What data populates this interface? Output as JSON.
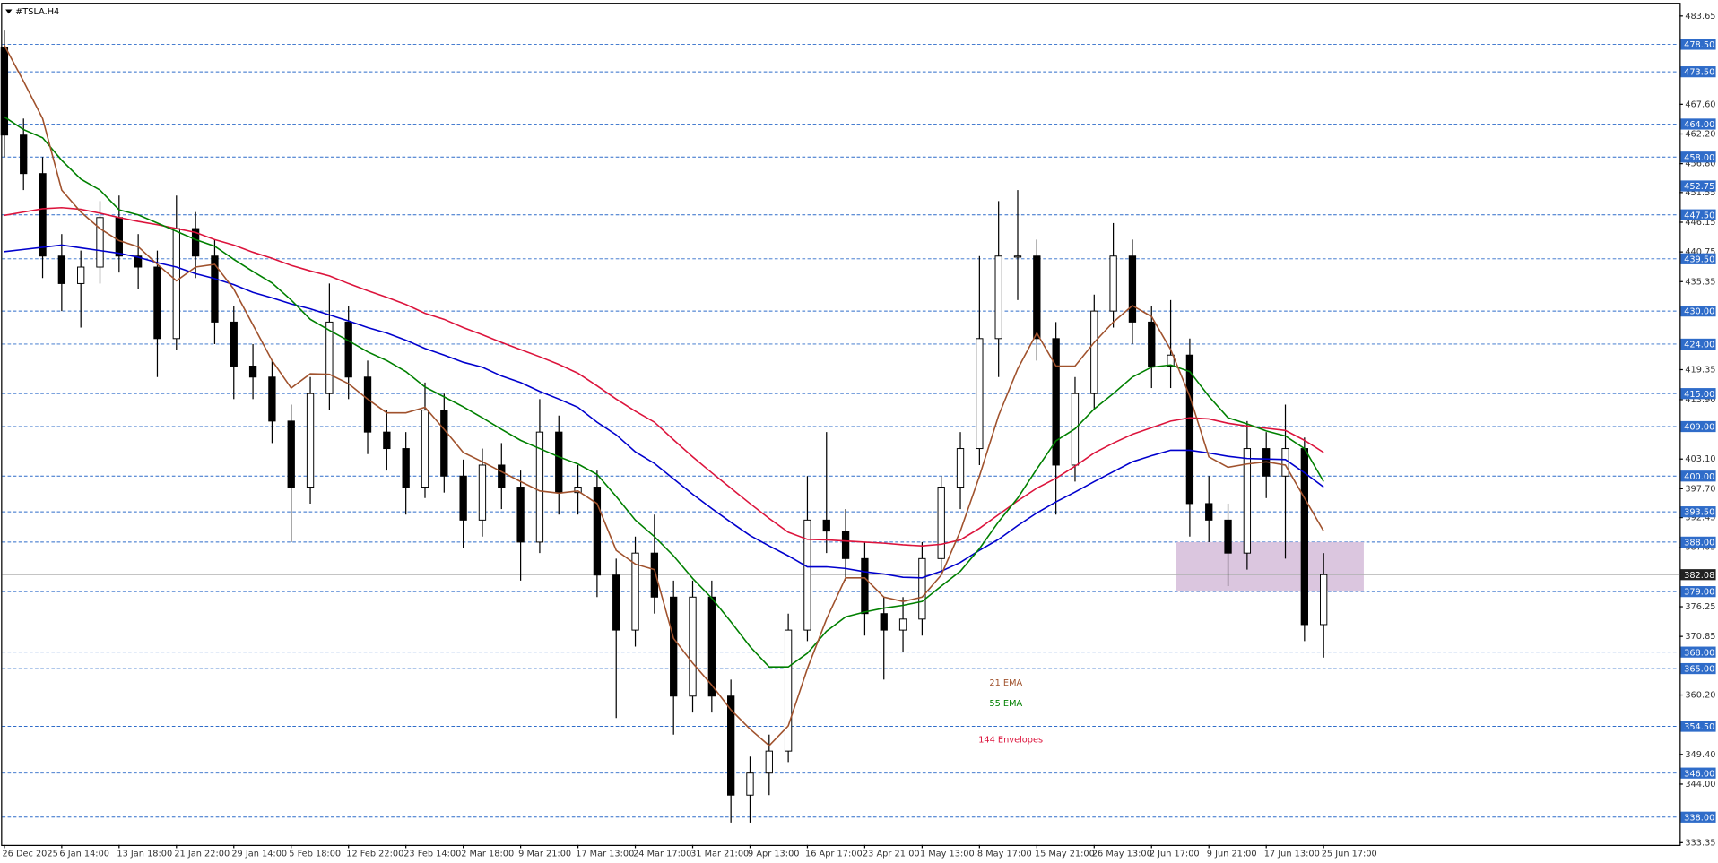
{
  "chart_data": {
    "type": "candlestick",
    "title": "#TSLA.H4",
    "categories": [
      "26 Dec 2025",
      null,
      null,
      "6 Jan 14:00",
      null,
      null,
      "13 Jan 18:00",
      null,
      null,
      "21 Jan 22:00",
      null,
      null,
      "29 Jan 14:00",
      null,
      null,
      "5 Feb 18:00",
      null,
      null,
      "12 Feb 22:00",
      null,
      null,
      "23 Feb 14:00",
      null,
      null,
      "2 Mar 18:00",
      null,
      null,
      "9 Mar 21:00",
      null,
      null,
      "17 Mar 13:00",
      null,
      null,
      "24 Mar 17:00",
      null,
      null,
      "31 Mar 21:00",
      null,
      null,
      "9 Apr 13:00",
      null,
      null,
      "16 Apr 17:00",
      null,
      null,
      "23 Apr 21:00",
      null,
      null,
      "1 May 13:00",
      null,
      null,
      "8 May 17:00",
      null,
      null,
      "15 May 21:00",
      null,
      null,
      "26 May 13:00",
      null,
      null,
      "2 Jun 17:00",
      null,
      null,
      "9 Jun 21:00",
      null,
      null,
      "17 Jun 13:00",
      null,
      null,
      "25 Jun 17:00"
    ],
    "open": [
      478,
      462,
      455,
      440,
      435,
      438,
      447,
      440,
      438,
      425,
      445,
      440,
      428,
      420,
      418,
      410,
      398,
      415,
      428,
      418,
      408,
      405,
      398,
      412,
      400,
      392,
      402,
      398,
      388,
      408,
      397,
      398,
      382,
      372,
      386,
      378,
      360,
      378,
      360,
      342,
      346,
      350,
      372,
      392,
      390,
      385,
      375,
      372,
      374,
      385,
      398,
      405,
      425,
      440,
      440,
      425,
      402,
      415,
      430,
      440,
      428,
      420,
      422,
      395,
      392,
      386,
      405,
      400,
      405,
      373
    ],
    "high": [
      481,
      465,
      458,
      444,
      441,
      450,
      451,
      444,
      441,
      451,
      448,
      443,
      431,
      424,
      421,
      413,
      418,
      435,
      431,
      421,
      412,
      408,
      417,
      415,
      403,
      405,
      406,
      401,
      414,
      411,
      402,
      401,
      385,
      389,
      393,
      381,
      381,
      381,
      363,
      349,
      353,
      375,
      400,
      408,
      394,
      388,
      378,
      378,
      388,
      400,
      408,
      440,
      450,
      452,
      443,
      428,
      418,
      433,
      446,
      443,
      431,
      432,
      425,
      400,
      395,
      410,
      408,
      413,
      407,
      386
    ],
    "low": [
      458,
      452,
      436,
      430,
      427,
      435,
      437,
      434,
      418,
      423,
      436,
      424,
      414,
      414,
      406,
      388,
      395,
      412,
      414,
      404,
      401,
      393,
      396,
      397,
      387,
      389,
      394,
      381,
      386,
      393,
      393,
      378,
      356,
      369,
      375,
      353,
      357,
      357,
      337,
      337,
      342,
      348,
      370,
      386,
      381,
      371,
      363,
      368,
      371,
      382,
      394,
      402,
      418,
      432,
      421,
      393,
      399,
      412,
      427,
      424,
      416,
      416,
      389,
      388,
      380,
      383,
      396,
      385,
      370,
      367
    ],
    "close": [
      462,
      455,
      440,
      435,
      438,
      447,
      440,
      438,
      425,
      445,
      440,
      428,
      420,
      418,
      410,
      398,
      415,
      428,
      418,
      408,
      405,
      398,
      412,
      400,
      392,
      402,
      398,
      388,
      408,
      397,
      398,
      382,
      372,
      386,
      378,
      360,
      378,
      360,
      342,
      346,
      350,
      372,
      392,
      390,
      385,
      375,
      372,
      374,
      385,
      398,
      405,
      425,
      440,
      440,
      425,
      402,
      415,
      430,
      440,
      428,
      420,
      422,
      395,
      392,
      386,
      405,
      400,
      405,
      373,
      382.08
    ],
    "up_color": "#ffffff",
    "down_color": "#000000",
    "series": [
      {
        "color": "#dc143c",
        "values": [
          447.4,
          448,
          448.6,
          448.8,
          448.5,
          447.8,
          447,
          446.3,
          445.7,
          445,
          444.3,
          443,
          442,
          440.7,
          439.6,
          438.3,
          437.3,
          436.4,
          435,
          433.7,
          432.5,
          431.2,
          429.6,
          428.5,
          427,
          425.7,
          424.3,
          423,
          421.7,
          420.3,
          418.7,
          416.4,
          414,
          411.8,
          409.8,
          406.6,
          403.5,
          400.6,
          397.8,
          395,
          392.3,
          389.8,
          388.5,
          388.4,
          388.2,
          388,
          387.8,
          387.5,
          387.3,
          387.6,
          388.4,
          390.5,
          393,
          395.5,
          397.8,
          399.6,
          401.8,
          404.2,
          406,
          407.6,
          408.8,
          410,
          410.6,
          410.4,
          409.6,
          409.1,
          408.7,
          408.3,
          406.5,
          404.3
        ]
      },
      {
        "color": "#0000cd",
        "values": [
          440.8,
          441.2,
          441.6,
          442,
          441.5,
          441,
          440.5,
          439.8,
          438.8,
          438,
          436.8,
          435.9,
          434.8,
          433.4,
          432.4,
          431.3,
          430.4,
          429.3,
          428.2,
          427,
          426,
          424.7,
          423.2,
          422,
          420.7,
          419.8,
          418.2,
          417,
          415.4,
          414,
          412.5,
          409.8,
          407.5,
          404.4,
          402.3,
          399.5,
          396.7,
          394.1,
          391.6,
          389.2,
          387.3,
          385.5,
          383.5,
          383.5,
          383.2,
          382.6,
          382.2,
          381.6,
          381.5,
          382.7,
          384.3,
          386.5,
          388.5,
          391,
          393.3,
          395.3,
          397.1,
          399,
          400.8,
          402.6,
          403.7,
          404.7,
          404.7,
          404.2,
          403.6,
          403.2,
          403.1,
          403,
          400.6,
          398
        ]
      },
      {
        "color": "#008000",
        "values": [
          465.3,
          463,
          461.5,
          457.4,
          454,
          452,
          448.4,
          447.5,
          446,
          444.5,
          443,
          441.8,
          439.4,
          437.2,
          435.1,
          432,
          428.5,
          426.5,
          424.6,
          422.6,
          421,
          419,
          416.2,
          414.4,
          412.6,
          410.6,
          408.5,
          406.5,
          405,
          403.5,
          402.2,
          400.3,
          396.3,
          392,
          389,
          385.5,
          381.4,
          377.8,
          373.5,
          369,
          365.3,
          365.3,
          367.8,
          371.8,
          374.4,
          375.3,
          376,
          376.5,
          377.2,
          380,
          382.7,
          386.8,
          391.7,
          396,
          401.3,
          406.4,
          408.6,
          412.2,
          415,
          418,
          419.8,
          420.2,
          419,
          414.5,
          410.6,
          409.5,
          408.2,
          407.3,
          405,
          399
        ]
      },
      {
        "color": "#a0522d",
        "values": [
          478.3,
          471.8,
          465,
          452,
          448,
          445,
          442.8,
          441.7,
          438.5,
          435.5,
          438,
          438.5,
          434,
          427.5,
          421,
          416,
          418.6,
          418.5,
          416.8,
          414,
          411.5,
          411.5,
          412.5,
          408.5,
          404.3,
          402.6,
          400.8,
          399,
          397.3,
          396.9,
          397.3,
          395,
          386.5,
          384,
          383,
          370.5,
          366,
          362,
          357.5,
          354,
          351,
          354.6,
          365,
          374,
          381.5,
          381.5,
          378,
          377.2,
          378,
          382,
          390,
          400,
          411,
          419.5,
          426,
          420,
          420,
          424.3,
          428,
          431,
          429,
          423,
          414.5,
          403.5,
          401.6,
          402.2,
          402.6,
          402,
          396,
          390
        ]
      }
    ],
    "ylim": [
      332.95,
      485.85
    ],
    "yticks": [
      483.65,
      {
        "value": 467.6,
        "label": "467.60"
      },
      {
        "value": 462.2,
        "label": "462.20"
      },
      {
        "value": 456.8,
        "label": "456.80"
      },
      451.55,
      446.15,
      440.75,
      435.35,
      419.35,
      {
        "value": 413.9,
        "label": "413.90"
      },
      {
        "value": 403.1,
        "label": "403.10"
      },
      {
        "value": 397.7,
        "label": "397.70"
      },
      392.45,
      387.05,
      376.25,
      370.85,
      {
        "value": 360.2,
        "label": "360.20"
      },
      {
        "value": 349.4,
        "label": "349.40"
      },
      {
        "value": 344,
        "label": "344.00"
      },
      333.35
    ],
    "levels": [
      {
        "value": 478.5,
        "label": "478.50"
      },
      {
        "value": 473.5,
        "label": "473.50"
      },
      {
        "value": 464,
        "label": "464.00"
      },
      {
        "value": 458,
        "label": "458.00"
      },
      {
        "value": 452.75,
        "label": "452.75"
      },
      {
        "value": 447.5,
        "label": "447.50"
      },
      {
        "value": 439.5,
        "label": "439.50"
      },
      {
        "value": 430,
        "label": "430.00"
      },
      {
        "value": 424,
        "label": "424.00"
      },
      {
        "value": 415,
        "label": "415.00"
      },
      {
        "value": 409,
        "label": "409.00"
      },
      {
        "value": 400,
        "label": "400.00"
      },
      {
        "value": 393.5,
        "label": "393.50"
      },
      {
        "value": 388,
        "label": "388.00"
      },
      {
        "value": 379,
        "label": "379.00"
      },
      {
        "value": 368,
        "label": "368.00"
      },
      {
        "value": 365,
        "label": "365.00"
      },
      {
        "value": 354.5,
        "label": "354.50"
      },
      {
        "value": 346,
        "label": "346.00"
      },
      {
        "value": 338,
        "label": "338.00"
      }
    ],
    "level_color": "#2f6cc9",
    "last_price": 382.08,
    "zone": [
      379,
      388
    ],
    "zone_color": "#d5bcd9",
    "annotations": [
      {
        "text": "21 EMA",
        "color": "#a0522d"
      },
      {
        "text": "55 EMA",
        "color": "#008000"
      },
      {
        "text": "144 Envelopes",
        "color": "#dc143c"
      }
    ]
  }
}
